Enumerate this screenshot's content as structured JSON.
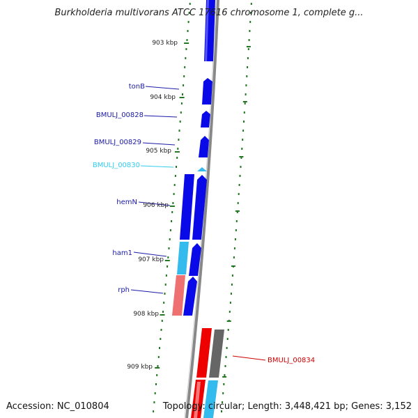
{
  "title": "Burkholderia multivorans ATCC 17616 chromosome 1, complete g...",
  "footer": {
    "accession": "Accession: NC_010804",
    "topology": "Topology: circular; Length: 3,448,421 bp; Genes: 3,152"
  },
  "kbp_labels": [
    "903 kbp",
    "904 kbp",
    "905 kbp",
    "906 kbp",
    "907 kbp",
    "908 kbp",
    "909 kbp"
  ],
  "gene_labels": [
    {
      "text": "tonB",
      "color": "#1a1aa6"
    },
    {
      "text": "BMULJ_00828",
      "color": "#1a1aa6"
    },
    {
      "text": "BMULJ_00829",
      "color": "#1a1aa6"
    },
    {
      "text": "BMULJ_00830",
      "color": "#33ccee"
    },
    {
      "text": "hemN",
      "color": "#1a1aa6"
    },
    {
      "text": "ham1",
      "color": "#1a1aa6"
    },
    {
      "text": "rph",
      "color": "#1a1aa6"
    },
    {
      "text": "BMULJ_00834",
      "color": "#cc0000"
    }
  ],
  "colors": {
    "blue": "#0a0ae8",
    "cyan": "#33bbee",
    "salmon": "#ee7070",
    "red": "#ee0000",
    "gray": "#666666",
    "backbone": "#888888",
    "ticks": "#227722"
  }
}
